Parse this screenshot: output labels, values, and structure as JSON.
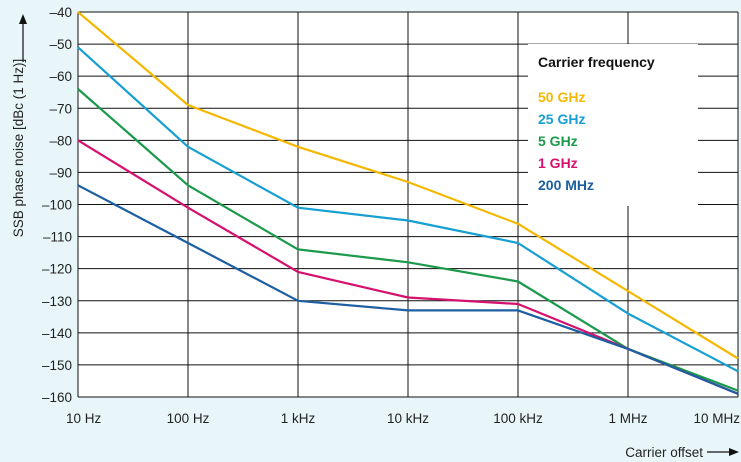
{
  "chart_data": {
    "type": "line",
    "x_scale": "log",
    "x_ticks": [
      "10 Hz",
      "100 Hz",
      "1 kHz",
      "10 kHz",
      "100 kHz",
      "1 MHz",
      "10 MHz"
    ],
    "x_values_hz": [
      10,
      100,
      1000,
      10000,
      100000,
      1000000,
      10000000
    ],
    "y_ticks": [
      "–40",
      "–50",
      "–60",
      "–70",
      "–80",
      "–90",
      "–100",
      "–110",
      "–120",
      "–130",
      "–140",
      "–150",
      "–160"
    ],
    "ylim": [
      -160,
      -40
    ],
    "xlim_hz": [
      10,
      10000000
    ],
    "xlabel": "Carrier offset",
    "ylabel": "SSB phase noise [dBc (1 Hz)]",
    "grid": true,
    "legend": {
      "title": "Carrier frequency",
      "placement": "top-right"
    },
    "series": [
      {
        "name": "50 GHz",
        "color": "#f5b800",
        "values": [
          -40,
          -69,
          -82,
          -93,
          -106,
          -127,
          -148
        ]
      },
      {
        "name": "25 GHz",
        "color": "#169fd0",
        "values": [
          -51,
          -82,
          -101,
          -105,
          -112,
          -134,
          -152
        ]
      },
      {
        "name": "5 GHz",
        "color": "#1a9a4a",
        "values": [
          -64,
          -94,
          -114,
          -118,
          -124,
          -145,
          -158
        ]
      },
      {
        "name": "1 GHz",
        "color": "#d6106e",
        "values": [
          -80,
          -101,
          -121,
          -129,
          -131,
          -145,
          -159
        ]
      },
      {
        "name": "200 MHz",
        "color": "#1c5fa2",
        "values": [
          -94,
          -112,
          -130,
          -133,
          -133,
          -145,
          -159
        ]
      }
    ]
  }
}
